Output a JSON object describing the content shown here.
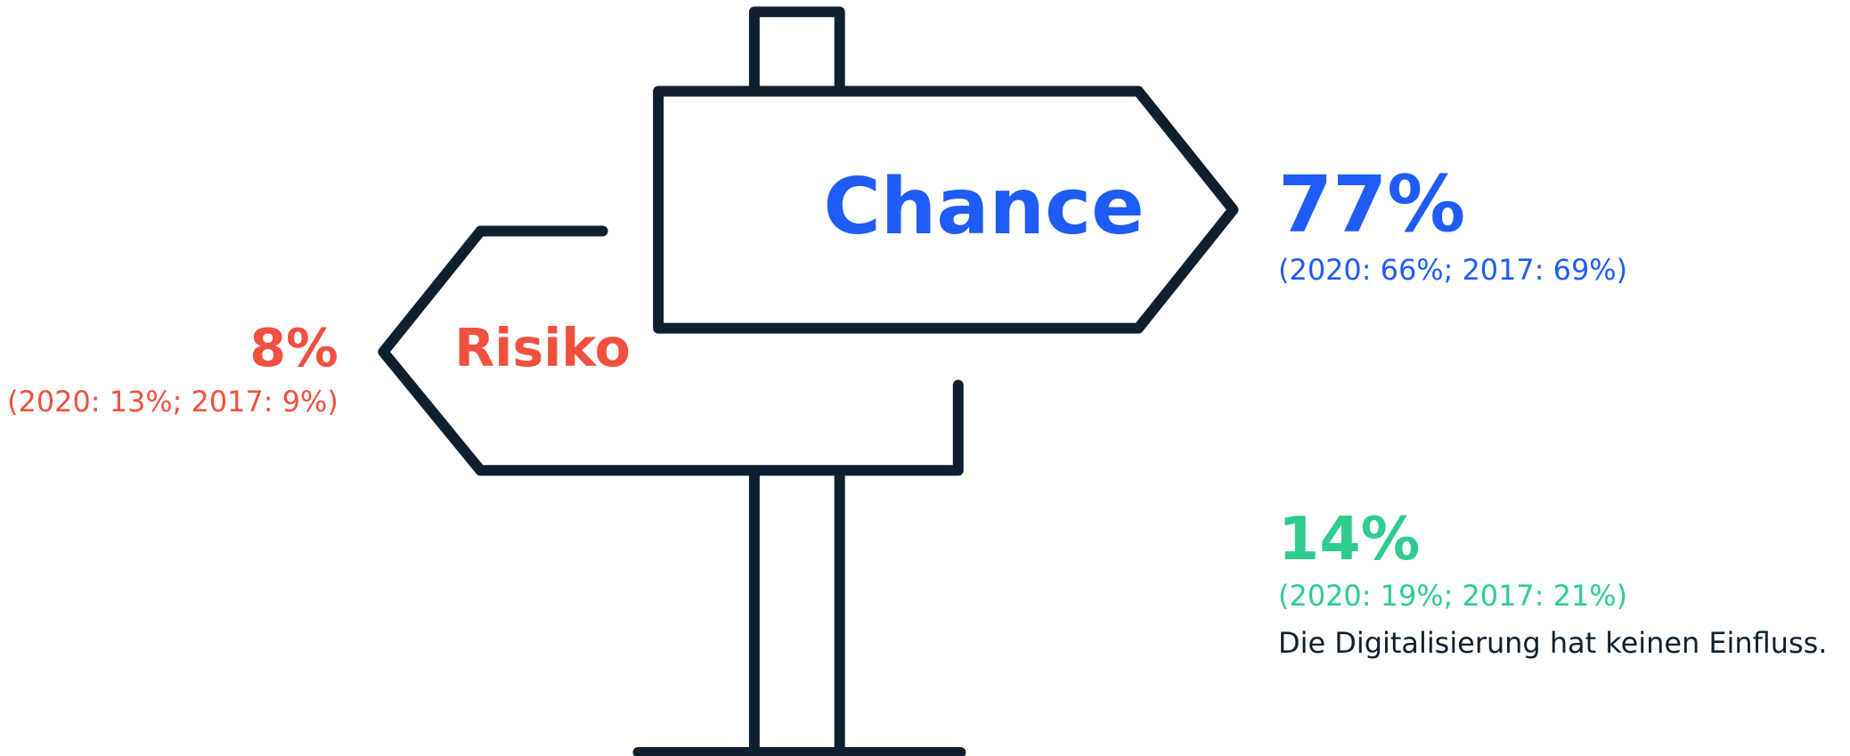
{
  "signs": {
    "chance": {
      "label": "Chance",
      "value": "77%",
      "history": "(2020: 66%; 2017: 69%)"
    },
    "risiko": {
      "label": "Risiko",
      "value": "8%",
      "history": "(2020: 13%; 2017: 9%)"
    },
    "neutral": {
      "value": "14%",
      "history": "(2020: 19%; 2017: 21%)",
      "description": "Die Digitalisierung hat keinen Einfluss."
    }
  }
}
